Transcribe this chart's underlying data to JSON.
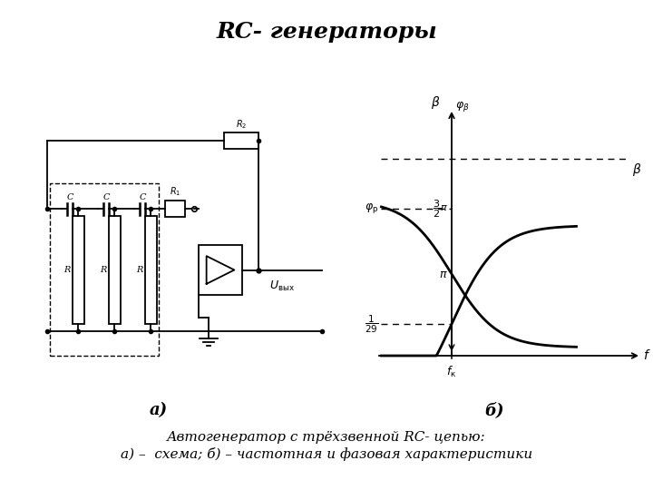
{
  "title": "RC- генераторы",
  "title_fontsize": 18,
  "caption_line1": "Автогенератор с трёхзвенной RC- цепью:",
  "caption_line2": "а) –  схема; б) – частотная и фазовая характеристики",
  "caption_fontsize": 11,
  "label_a": "а)",
  "label_b": "б)",
  "background_color": "#ffffff",
  "lw": 1.3
}
